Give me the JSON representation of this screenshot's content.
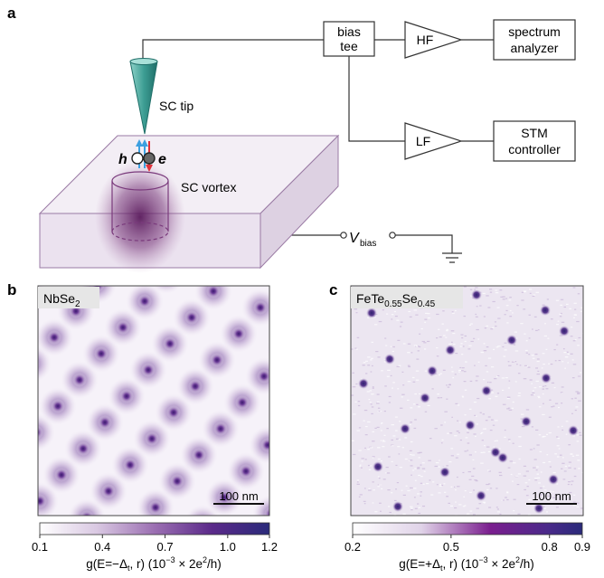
{
  "panel_a": {
    "letter": "a",
    "boxes": {
      "bias_tee": [
        "bias",
        "tee"
      ],
      "hf": "HF",
      "lf": "LF",
      "spectrum_analyzer": [
        "spectrum",
        "analyzer"
      ],
      "stm_controller": [
        "STM",
        "controller"
      ]
    },
    "sc_tip": "SC tip",
    "sc_vortex": "SC vortex",
    "hole": "h",
    "electron": "e",
    "vbias_main": "V",
    "vbias_sub": "bias"
  },
  "panel_b": {
    "letter": "b",
    "material": "NbSe",
    "material_sub": "2",
    "scale_bar": "100 nm",
    "colorbar_ticks": [
      "0.1",
      "0.4",
      "0.7",
      "1.0",
      "1.2"
    ],
    "colorbar_range": [
      0.1,
      1.2
    ],
    "colorbar_label_prefix": "g(E=−Δ",
    "colorbar_label_mid": ", r) (10",
    "colorbar_label_exp": "−3",
    "colorbar_label_suffix": " × 2e",
    "colorbar_label_exp2": "2",
    "colorbar_label_end": "/h)"
  },
  "panel_c": {
    "letter": "c",
    "material_parts": [
      "FeTe",
      "0.55",
      "Se",
      "0.45"
    ],
    "scale_bar": "100 nm",
    "colorbar_ticks": [
      "0.2",
      "0.5",
      "0.8",
      "0.9"
    ],
    "colorbar_range": [
      0.2,
      0.9
    ],
    "colorbar_label_prefix": "g(E=+Δ",
    "colorbar_label_mid": ", r) (10",
    "colorbar_label_exp": "−3",
    "colorbar_label_suffix": " × 2e",
    "colorbar_label_exp2": "2",
    "colorbar_label_end": "/h)"
  },
  "colors": {
    "tip": "#3d9e94",
    "vortex": "#5a1a5c",
    "box_face": "#f1edf3",
    "hole_arrow": "#3ca0e0",
    "electron_arrow": "#e0303a",
    "cmap_low": "#ffffff",
    "cmap_mid": "#7d3c98",
    "cmap_high": "#2a2a7a"
  }
}
